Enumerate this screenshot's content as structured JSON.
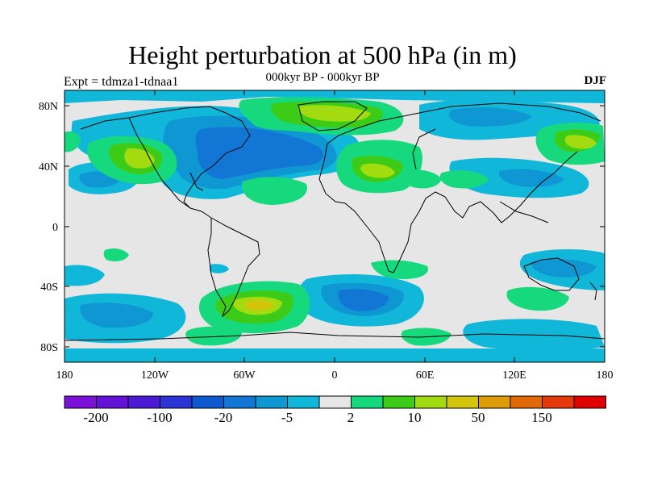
{
  "header": {
    "title": "Height perturbation at 500 hPa (in m)",
    "subtitle": "000kyr BP - 000kyr BP",
    "experiment": "Expt = tdmza1-tdnaa1",
    "season": "DJF"
  },
  "axes": {
    "x_ticks": [
      "180",
      "120W",
      "60W",
      "0",
      "60E",
      "120E",
      "180"
    ],
    "y_ticks": [
      "80N",
      "40N",
      "0",
      "40S",
      "80S"
    ]
  },
  "colorbar": {
    "colors": [
      "#7b10d8",
      "#6412d6",
      "#4b1bd4",
      "#2c34d6",
      "#0f59d0",
      "#1277d4",
      "#0f97d3",
      "#11b7d8",
      "#e6e6e6",
      "#16d97e",
      "#3ccc18",
      "#a2dc10",
      "#d3c50c",
      "#de9b0a",
      "#e06806",
      "#e43a0a",
      "#e00000"
    ],
    "labels": [
      "-200",
      "-100",
      "-20",
      "-5",
      "2",
      "10",
      "50",
      "150"
    ]
  },
  "map_colors": {
    "background": "#e6e6e6",
    "neg_light": "#11b7d8",
    "neg_mid": "#0f97d3",
    "neg_dark": "#1277d4",
    "pos_light": "#16d97e",
    "pos_mid": "#3ccc18",
    "pos_dark": "#a2dc10",
    "pos_max": "#d3c50c"
  }
}
